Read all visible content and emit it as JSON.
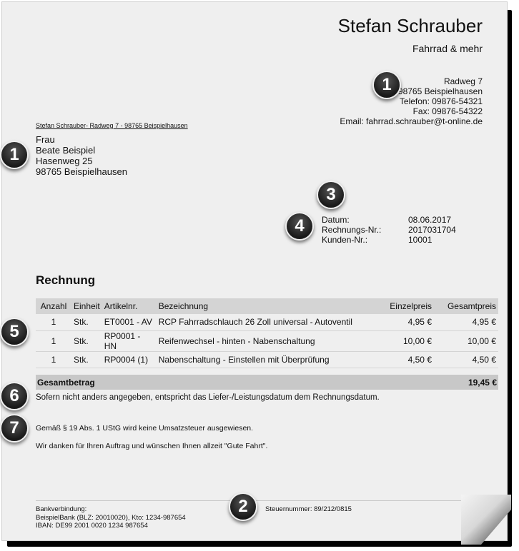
{
  "company": {
    "name": "Stefan Schrauber",
    "tagline": "Fahrrad & mehr",
    "street": "Radweg 7",
    "city": "98765 Beispielhausen",
    "phone": "Telefon: 09876-54321",
    "fax": "Fax: 09876-54322",
    "email": "Email: fahrrad.schrauber@t-online.de"
  },
  "return_line": "Stefan Schrauber- Radweg 7 - 98765 Beispielhausen",
  "recipient": {
    "salutation": "Frau",
    "name": "Beate Beispiel",
    "street": "Hasenweg 25",
    "city": "98765 Beispielhausen"
  },
  "meta": [
    {
      "label": "Datum:",
      "value": "08.06.2017"
    },
    {
      "label": "Rechnungs-Nr.:",
      "value": "2017031704"
    },
    {
      "label": "Kunden-Nr.:",
      "value": "10001"
    }
  ],
  "heading": "Rechnung",
  "table": {
    "headers": [
      "Anzahl",
      "Einheit",
      "Artikelnr.",
      "Bezeichnung",
      "Einzelpreis",
      "Gesamtpreis"
    ],
    "rows": [
      [
        "1",
        "Stk.",
        "ET0001 - AV",
        "RCP Fahrradschlauch 26 Zoll universal - Autoventil",
        "4,95 €",
        "4,95 €"
      ],
      [
        "1",
        "Stk.",
        "RP0001 - HN",
        "Reifenwechsel - hinten - Nabenschaltung",
        "10,00 €",
        "10,00 €"
      ],
      [
        "1",
        "Stk.",
        "RP0004 (1)",
        "Nabenschaltung - Einstellen mit Überprüfung",
        "4,50 €",
        "4,50 €"
      ]
    ]
  },
  "total": {
    "label": "Gesamtbetrag",
    "value": "19,45 €"
  },
  "notes": [
    "Sofern nicht anders angegeben, entspricht das Liefer-/Leistungsdatum dem Rechnungsdatum.",
    "Gemäß § 19 Abs. 1 UStG wird keine Umsatzsteuer ausgewiesen.",
    "Wir danken für Ihren Auftrag und wünschen Ihnen allzeit \"Gute Fahrt\"."
  ],
  "footer": {
    "bank_label": "Bankverbindung:",
    "bank": "BeispielBank (BLZ: 20010020), Kto: 1234-987654",
    "iban": "IBAN: DE99 2001 0020 1234 987654",
    "tax": "Steuernummer: 89/212/0815"
  },
  "badges": [
    "1",
    "1",
    "3",
    "4",
    "5",
    "6",
    "7",
    "2"
  ]
}
